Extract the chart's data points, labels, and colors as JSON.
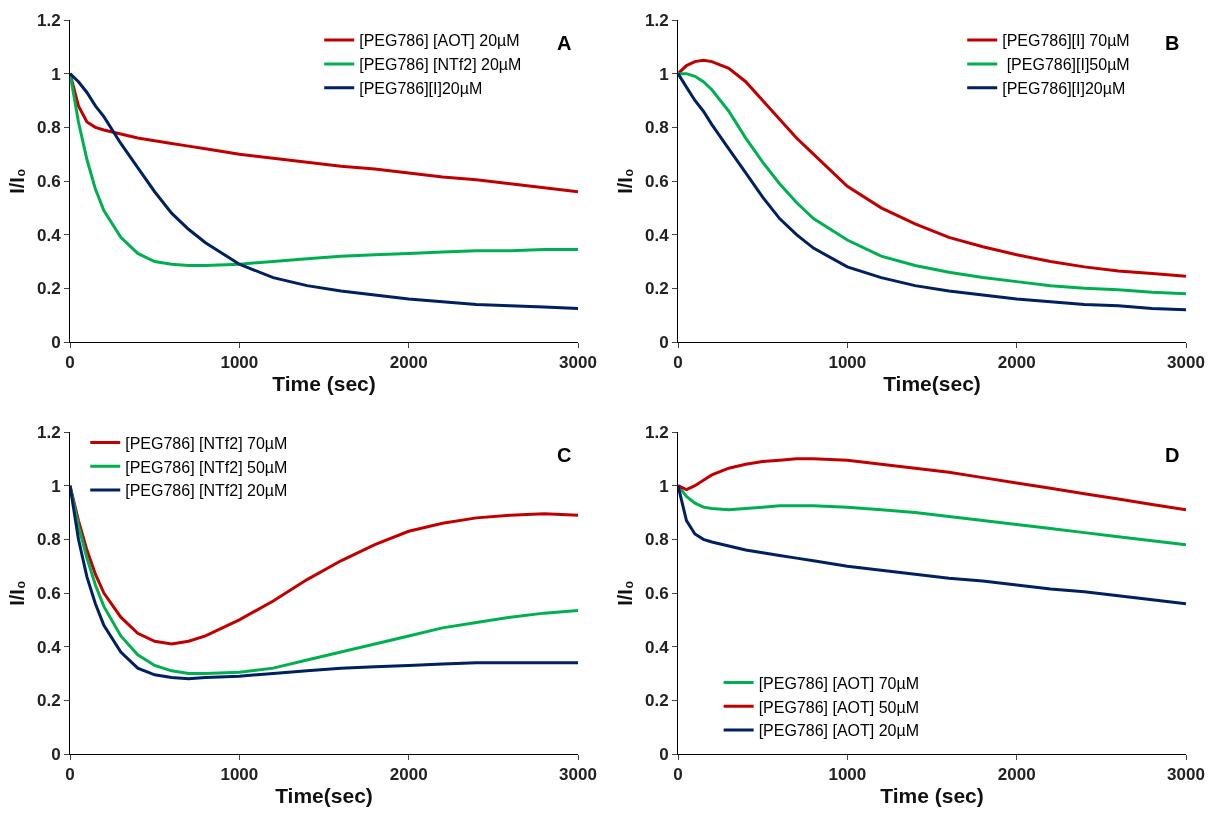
{
  "chart_data": [
    {
      "type": "line",
      "xlabel": "Time (sec)",
      "ylabel": "I/I₀",
      "annotations": [
        "A"
      ],
      "legend": "top right",
      "grid": false,
      "marker": "none",
      "line_style": "solid",
      "xlim": [
        0,
        3000
      ],
      "xticks": [
        0,
        1000,
        2000,
        3000
      ],
      "ylim": [
        0,
        1.2
      ],
      "yticks": [
        0,
        0.2,
        0.4,
        0.6,
        0.8,
        1,
        1.2
      ],
      "x": [
        0,
        50,
        100,
        150,
        200,
        300,
        400,
        500,
        600,
        700,
        800,
        1000,
        1200,
        1400,
        1600,
        1800,
        2000,
        2200,
        2400,
        2600,
        2800,
        3000
      ],
      "series": [
        {
          "name": "[PEG786] [AOT] 20µM",
          "color": "#c00000",
          "values": [
            1,
            0.88,
            0.82,
            0.8,
            0.79,
            0.775,
            0.76,
            0.75,
            0.74,
            0.73,
            0.72,
            0.7,
            0.685,
            0.67,
            0.655,
            0.645,
            0.63,
            0.615,
            0.605,
            0.59,
            0.575,
            0.56
          ]
        },
        {
          "name": "[PEG786] [NTf2] 20µM",
          "color": "#00b050",
          "values": [
            1,
            0.82,
            0.68,
            0.57,
            0.49,
            0.39,
            0.33,
            0.3,
            0.29,
            0.285,
            0.285,
            0.29,
            0.3,
            0.31,
            0.32,
            0.325,
            0.33,
            0.335,
            0.34,
            0.34,
            0.345,
            0.345
          ]
        },
        {
          "name": "[PEG786][I]20µM",
          "color": "#002060",
          "values": [
            1,
            0.97,
            0.93,
            0.88,
            0.84,
            0.74,
            0.65,
            0.56,
            0.48,
            0.42,
            0.37,
            0.29,
            0.24,
            0.21,
            0.19,
            0.175,
            0.16,
            0.15,
            0.14,
            0.135,
            0.13,
            0.125
          ]
        }
      ]
    },
    {
      "type": "line",
      "xlabel": "Time(sec)",
      "ylabel": "I/I₀",
      "annotations": [
        "B"
      ],
      "legend": "top right",
      "grid": false,
      "marker": "none",
      "line_style": "solid",
      "xlim": [
        0,
        3000
      ],
      "xticks": [
        0,
        1000,
        2000,
        3000
      ],
      "ylim": [
        0,
        1.2
      ],
      "yticks": [
        0,
        0.2,
        0.4,
        0.6,
        0.8,
        1,
        1.2
      ],
      "x": [
        0,
        50,
        100,
        150,
        200,
        300,
        400,
        500,
        600,
        700,
        800,
        1000,
        1200,
        1400,
        1600,
        1800,
        2000,
        2200,
        2400,
        2600,
        2800,
        3000
      ],
      "series": [
        {
          "name": "[PEG786][I] 70µM",
          "color": "#c00000",
          "values": [
            1,
            1.03,
            1.045,
            1.05,
            1.045,
            1.02,
            0.97,
            0.9,
            0.83,
            0.76,
            0.7,
            0.58,
            0.5,
            0.44,
            0.39,
            0.355,
            0.325,
            0.3,
            0.28,
            0.265,
            0.255,
            0.245
          ]
        },
        {
          "name": " [PEG786][I]50µM",
          "color": "#00b050",
          "values": [
            1,
            1.0,
            0.99,
            0.97,
            0.94,
            0.86,
            0.76,
            0.67,
            0.59,
            0.52,
            0.46,
            0.38,
            0.32,
            0.285,
            0.26,
            0.24,
            0.225,
            0.21,
            0.2,
            0.195,
            0.185,
            0.18
          ]
        },
        {
          "name": "[PEG786][I]20µM",
          "color": "#002060",
          "values": [
            1,
            0.95,
            0.9,
            0.86,
            0.81,
            0.72,
            0.63,
            0.54,
            0.46,
            0.4,
            0.35,
            0.28,
            0.24,
            0.21,
            0.19,
            0.175,
            0.16,
            0.15,
            0.14,
            0.135,
            0.125,
            0.12
          ]
        }
      ]
    },
    {
      "type": "line",
      "xlabel": "Time(sec)",
      "ylabel": "I/I₀",
      "annotations": [
        "C"
      ],
      "legend": "top left",
      "grid": false,
      "marker": "none",
      "line_style": "solid",
      "xlim": [
        0,
        3000
      ],
      "xticks": [
        0,
        1000,
        2000,
        3000
      ],
      "ylim": [
        0,
        1.2
      ],
      "yticks": [
        0,
        0.2,
        0.4,
        0.6,
        0.8,
        1,
        1.2
      ],
      "x": [
        0,
        50,
        100,
        150,
        200,
        300,
        400,
        500,
        600,
        700,
        800,
        1000,
        1200,
        1400,
        1600,
        1800,
        2000,
        2200,
        2400,
        2600,
        2800,
        3000
      ],
      "series": [
        {
          "name": "[PEG786] [NTf2] 70µM",
          "color": "#c00000",
          "values": [
            1,
            0.87,
            0.76,
            0.67,
            0.6,
            0.51,
            0.45,
            0.42,
            0.41,
            0.42,
            0.44,
            0.5,
            0.57,
            0.65,
            0.72,
            0.78,
            0.83,
            0.86,
            0.88,
            0.89,
            0.895,
            0.89
          ]
        },
        {
          "name": "[PEG786] [NTf2] 50µM",
          "color": "#00b050",
          "values": [
            1,
            0.85,
            0.73,
            0.63,
            0.55,
            0.44,
            0.37,
            0.33,
            0.31,
            0.3,
            0.3,
            0.305,
            0.32,
            0.35,
            0.38,
            0.41,
            0.44,
            0.47,
            0.49,
            0.51,
            0.525,
            0.535
          ]
        },
        {
          "name": "[PEG786] [NTf2] 20µM",
          "color": "#002060",
          "values": [
            1,
            0.8,
            0.66,
            0.56,
            0.48,
            0.38,
            0.32,
            0.295,
            0.285,
            0.28,
            0.285,
            0.29,
            0.3,
            0.31,
            0.32,
            0.325,
            0.33,
            0.335,
            0.34,
            0.34,
            0.34,
            0.34
          ]
        }
      ]
    },
    {
      "type": "line",
      "xlabel": "Time (sec)",
      "ylabel": "I/I₀",
      "annotations": [
        "D"
      ],
      "legend": "bottom left",
      "grid": false,
      "marker": "none",
      "line_style": "solid",
      "xlim": [
        0,
        3000
      ],
      "xticks": [
        0,
        1000,
        2000,
        3000
      ],
      "ylim": [
        0,
        1.2
      ],
      "yticks": [
        0,
        0.2,
        0.4,
        0.6,
        0.8,
        1,
        1.2
      ],
      "x": [
        0,
        50,
        100,
        150,
        200,
        300,
        400,
        500,
        600,
        700,
        800,
        1000,
        1200,
        1400,
        1600,
        1800,
        2000,
        2200,
        2400,
        2600,
        2800,
        3000
      ],
      "series": [
        {
          "name": "[PEG786] [AOT] 70µM",
          "color": "#00b050",
          "values": [
            1,
            0.96,
            0.935,
            0.92,
            0.915,
            0.91,
            0.915,
            0.92,
            0.925,
            0.925,
            0.925,
            0.92,
            0.91,
            0.9,
            0.885,
            0.87,
            0.855,
            0.84,
            0.825,
            0.81,
            0.795,
            0.78
          ]
        },
        {
          "name": "[PEG786] [AOT] 50µM",
          "color": "#c00000",
          "values": [
            1,
            0.985,
            1.0,
            1.02,
            1.04,
            1.065,
            1.08,
            1.09,
            1.095,
            1.1,
            1.1,
            1.095,
            1.08,
            1.065,
            1.05,
            1.03,
            1.01,
            0.99,
            0.97,
            0.95,
            0.93,
            0.91
          ]
        },
        {
          "name": "[PEG786] [AOT] 20µM",
          "color": "#002060",
          "values": [
            1,
            0.87,
            0.82,
            0.8,
            0.79,
            0.775,
            0.76,
            0.75,
            0.74,
            0.73,
            0.72,
            0.7,
            0.685,
            0.67,
            0.655,
            0.645,
            0.63,
            0.615,
            0.605,
            0.59,
            0.575,
            0.56
          ]
        }
      ]
    }
  ]
}
